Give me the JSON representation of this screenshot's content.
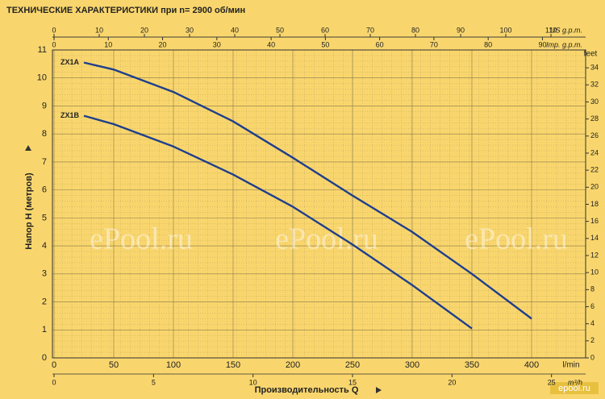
{
  "chart_data": {
    "type": "line",
    "title": "ТЕХНИЧЕСКИЕ ХАРАКТЕРИСТИКИ при n= 2900 об/мин",
    "x_label": "Производительность Q",
    "x_unit": "l/min",
    "y_label": "Напор H  (метров)",
    "y2_unit": "feet",
    "x": [
      25,
      50,
      100,
      150,
      200,
      250,
      300,
      350,
      400
    ],
    "series": [
      {
        "name": "ZX1A",
        "color": "#1f3f8c",
        "values": [
          10.55,
          10.3,
          9.5,
          8.45,
          7.15,
          5.8,
          4.5,
          3.0,
          1.4
        ]
      },
      {
        "name": "ZX1B",
        "color": "#1f3f8c",
        "values": [
          8.65,
          8.35,
          7.55,
          6.55,
          5.4,
          4.05,
          2.6,
          1.05,
          null
        ]
      }
    ],
    "xlim": [
      0,
      445
    ],
    "xticks": [
      0,
      50,
      100,
      150,
      200,
      250,
      300,
      350,
      400
    ],
    "ylim": [
      0,
      11
    ],
    "yticks": [
      0,
      1,
      2,
      3,
      4,
      5,
      6,
      7,
      8,
      9,
      10,
      11
    ],
    "y2lim": [
      0,
      36.09
    ],
    "y2ticks": [
      0,
      2,
      4,
      6,
      8,
      10,
      12,
      14,
      16,
      18,
      20,
      22,
      24,
      26,
      28,
      30,
      32,
      34
    ],
    "secondary_x_axes": [
      {
        "label": "US g.p.m.",
        "position": "top",
        "lim": [
          0,
          117.6
        ],
        "ticks": [
          0,
          10,
          20,
          30,
          40,
          50,
          60,
          70,
          80,
          90,
          100,
          110
        ]
      },
      {
        "label": "Imp. g.p.m.",
        "position": "top",
        "lim": [
          0,
          97.9
        ],
        "ticks": [
          0,
          10,
          20,
          30,
          40,
          50,
          60,
          70,
          80,
          90
        ]
      },
      {
        "label": "m³/h",
        "position": "bottom",
        "lim": [
          0,
          26.7
        ],
        "ticks": [
          0,
          5,
          10,
          15,
          20,
          25
        ]
      }
    ],
    "grid": true,
    "watermarks": [
      "ePool.ru",
      "ePool.ru",
      "ePool.ru"
    ],
    "logo": "epool.ru"
  }
}
